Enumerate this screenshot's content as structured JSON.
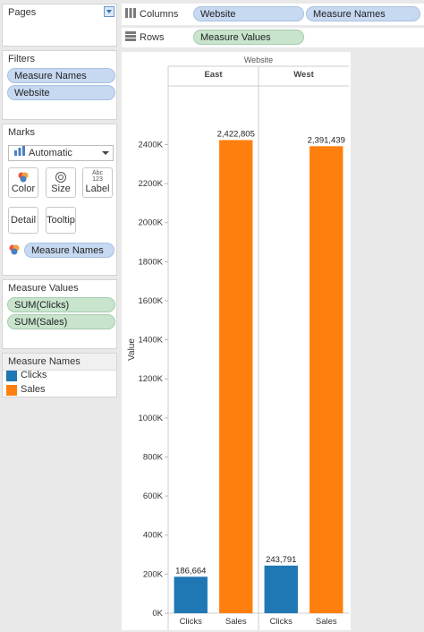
{
  "pages": {
    "title": "Pages"
  },
  "filters": {
    "title": "Filters",
    "items": [
      "Measure Names",
      "Website"
    ]
  },
  "marks": {
    "title": "Marks",
    "type": "Automatic",
    "buttons": {
      "color": "Color",
      "size": "Size",
      "label": "Label",
      "detail": "Detail",
      "tooltip": "Tooltip"
    },
    "label_icon_text": "Abc\n123",
    "color_field": "Measure Names"
  },
  "measure_values": {
    "title": "Measure Values",
    "items": [
      "SUM(Clicks)",
      "SUM(Sales)"
    ]
  },
  "legend": {
    "title": "Measure Names",
    "items": [
      {
        "label": "Clicks",
        "color": "#1f77b4"
      },
      {
        "label": "Sales",
        "color": "#ff7f0e"
      }
    ]
  },
  "shelves": {
    "columns_label": "Columns",
    "columns_pills": [
      "Website",
      "Measure Names"
    ],
    "rows_label": "Rows",
    "rows_pills": [
      "Measure Values"
    ]
  },
  "chart_data": {
    "type": "bar",
    "header_title": "Website",
    "panes": [
      "East",
      "West"
    ],
    "categories": [
      "Clicks",
      "Sales"
    ],
    "values": {
      "East": [
        186664,
        2422805
      ],
      "West": [
        243791,
        2391439
      ]
    },
    "data_labels": {
      "East": [
        "186,664",
        "2,422,805"
      ],
      "West": [
        "243,791",
        "2,391,439"
      ]
    },
    "colors": [
      "#1f77b4",
      "#ff7f0e"
    ],
    "ylabel": "Value",
    "ylim": [
      0,
      2700000
    ],
    "yticks": [
      0,
      200000,
      400000,
      600000,
      800000,
      1000000,
      1200000,
      1400000,
      1600000,
      1800000,
      2000000,
      2200000,
      2400000
    ],
    "ytick_labels": [
      "0K",
      "200K",
      "400K",
      "600K",
      "800K",
      "1000K",
      "1200K",
      "1400K",
      "1600K",
      "1800K",
      "2000K",
      "2200K",
      "2400K"
    ]
  }
}
